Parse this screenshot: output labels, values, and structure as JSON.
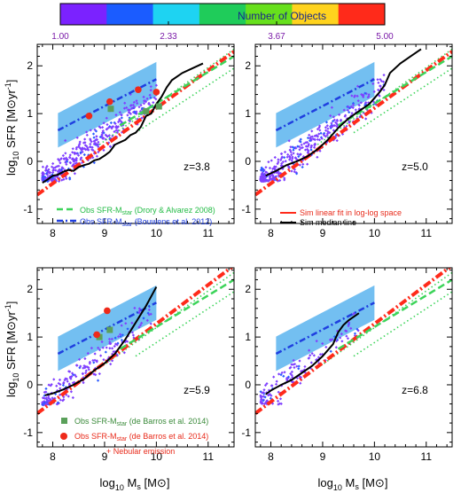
{
  "colorbar": {
    "title": "Number of Objects",
    "ticks": [
      "1.00",
      "2.33",
      "3.67",
      "5.00"
    ],
    "tick_values": [
      1.0,
      2.333,
      3.667,
      5.0
    ],
    "range": [
      1.0,
      5.0
    ],
    "colors": [
      "#7b22ff",
      "#1b5cff",
      "#1ed3f2",
      "#1fcc5a",
      "#67e01c",
      "#ffd31e",
      "#ff2a1a"
    ]
  },
  "axis_labels": {
    "ylabel_main": "log",
    "ylabel_sub": "10",
    "ylabel_rest": " SFR  [M",
    "ylabel_sun": "⊙",
    "ylabel_unit": "yr",
    "ylabel_sup": "-1",
    "ylabel_close": "]",
    "xlabel_main": "log",
    "xlabel_sub": "10",
    "xlabel_m": " M",
    "xlabel_msub": "s",
    "xlabel_unit": "  [M",
    "xlabel_sun": "⊙",
    "xlabel_close": "]"
  },
  "legends": {
    "p1": {
      "drory": "Obs SFR-M",
      "drory_sub": "star",
      "drory_ref": " (Drory & Alvarez 2008)",
      "bouwens": "Obs SFR-M",
      "bouwens_sub": "star",
      "bouwens_ref": " (Bouwens et al. 2012)"
    },
    "p2": {
      "linfit": "Sim linear fit in log-log space",
      "median": "Sim median line"
    },
    "p3": {
      "barros_sq": "Obs SFR-M",
      "barros_sq_sub": "star",
      "barros_sq_ref": " (de Barros et al. 2014)",
      "barros_ci": "Obs SFR-M",
      "barros_ci_sub": "star",
      "barros_ci_ref": " (de Barros et al. 2014)",
      "nebular": "+ Nebular emission"
    }
  },
  "chart_data": [
    {
      "type": "scatter",
      "panel": "top-left",
      "redshift_label": "z=3.8",
      "xlim": [
        7.7,
        11.5
      ],
      "ylim": [
        -1.3,
        2.45
      ],
      "xticks": [
        "8",
        "9",
        "10",
        "11"
      ],
      "yticks": [
        "-1",
        "0",
        "1",
        "2"
      ],
      "scatter_cloud": {
        "x_range": [
          7.8,
          10.0
        ],
        "y_center_at_x8": -0.3,
        "slope": 0.85,
        "count_shown": "dense"
      },
      "series": [
        {
          "name": "Sim median line",
          "x": [
            7.8,
            7.9,
            8.0,
            8.1,
            8.2,
            8.3,
            8.4,
            8.5,
            8.6,
            8.7,
            8.8,
            8.9,
            9.0,
            9.1,
            9.2,
            9.3,
            9.4,
            9.5,
            9.6,
            9.7,
            9.8,
            9.9,
            10.0,
            10.1,
            10.2,
            10.3,
            10.5,
            10.7,
            10.9
          ],
          "y": [
            -0.45,
            -0.38,
            -0.3,
            -0.28,
            -0.22,
            -0.18,
            -0.2,
            -0.12,
            -0.08,
            -0.05,
            0.02,
            0.05,
            0.12,
            0.2,
            0.35,
            0.4,
            0.45,
            0.55,
            0.6,
            0.72,
            0.95,
            1.0,
            1.2,
            1.35,
            1.55,
            1.7,
            1.85,
            1.95,
            2.05
          ]
        },
        {
          "name": "Sim linear fit in log-log space",
          "x": [
            7.7,
            11.5
          ],
          "y": [
            -0.7,
            2.3
          ]
        },
        {
          "name": "Obs SFR-Mstar (Drory & Alvarez 2008)",
          "x": [
            9.3,
            11.5
          ],
          "y": [
            0.75,
            2.2
          ]
        },
        {
          "name": "Obs SFR-Mstar (Bouwens et al. 2012)",
          "x": [
            8.1,
            10.0
          ],
          "y": [
            0.65,
            1.72
          ]
        }
      ],
      "obs_points_squares": [
        [
          9.12,
          1.1
        ],
        [
          9.8,
          1.05
        ],
        [
          10.05,
          1.15
        ]
      ],
      "obs_points_circles": [
        [
          8.7,
          0.95
        ],
        [
          9.1,
          1.25
        ],
        [
          9.65,
          1.5
        ],
        [
          10.0,
          1.45
        ]
      ]
    },
    {
      "type": "scatter",
      "panel": "top-right",
      "redshift_label": "z=5.0",
      "xlim": [
        7.7,
        11.5
      ],
      "ylim": [
        -1.3,
        2.45
      ],
      "xticks": [
        "8",
        "9",
        "10",
        "11"
      ],
      "yticks": [
        "-1",
        "0",
        "1",
        "2"
      ],
      "scatter_cloud": {
        "x_range": [
          7.8,
          10.2
        ],
        "y_center_at_x8": -0.3,
        "slope": 0.85,
        "count_shown": "dense"
      },
      "series": [
        {
          "name": "Sim median line",
          "x": [
            7.9,
            8.1,
            8.3,
            8.5,
            8.7,
            8.9,
            9.1,
            9.3,
            9.5,
            9.7,
            9.9,
            10.1,
            10.2,
            10.3,
            10.5,
            10.7,
            10.9
          ],
          "y": [
            -0.3,
            -0.2,
            -0.08,
            0.0,
            0.1,
            0.25,
            0.45,
            0.7,
            0.9,
            1.05,
            1.2,
            1.45,
            1.6,
            1.85,
            2.05,
            2.2,
            2.35
          ]
        },
        {
          "name": "Sim linear fit in log-log space",
          "x": [
            7.7,
            11.5
          ],
          "y": [
            -0.7,
            2.3
          ]
        }
      ]
    },
    {
      "type": "scatter",
      "panel": "bottom-left",
      "redshift_label": "z=5.9",
      "xlim": [
        7.7,
        11.5
      ],
      "ylim": [
        -1.3,
        2.45
      ],
      "xticks": [
        "8",
        "9",
        "10",
        "11"
      ],
      "yticks": [
        "-1",
        "0",
        "1",
        "2"
      ],
      "scatter_cloud": {
        "x_range": [
          7.8,
          9.9
        ],
        "y_center_at_x8": -0.25,
        "slope": 0.9,
        "count_shown": "medium"
      },
      "series": [
        {
          "name": "Sim median line",
          "x": [
            7.85,
            8.0,
            8.2,
            8.4,
            8.6,
            8.8,
            9.0,
            9.2,
            9.4,
            9.6,
            9.8,
            10.0
          ],
          "y": [
            -0.22,
            -0.18,
            -0.1,
            0.0,
            0.12,
            0.3,
            0.45,
            0.65,
            0.95,
            1.3,
            1.65,
            2.05
          ]
        },
        {
          "name": "Sim linear fit in log-log space",
          "x": [
            7.7,
            11.5
          ],
          "y": [
            -0.6,
            2.5
          ]
        }
      ],
      "obs_points_squares": [
        [
          8.9,
          1.0
        ],
        [
          9.1,
          1.15
        ]
      ],
      "obs_points_circles": [
        [
          8.85,
          1.05
        ],
        [
          9.05,
          1.55
        ]
      ]
    },
    {
      "type": "scatter",
      "panel": "bottom-right",
      "redshift_label": "z=6.8",
      "xlim": [
        7.7,
        11.5
      ],
      "ylim": [
        -1.3,
        2.45
      ],
      "xticks": [
        "8",
        "9",
        "10",
        "11"
      ],
      "yticks": [
        "-1",
        "0",
        "1",
        "2"
      ],
      "scatter_cloud": {
        "x_range": [
          7.8,
          9.7
        ],
        "y_center_at_x8": -0.2,
        "slope": 0.9,
        "count_shown": "sparse"
      },
      "series": [
        {
          "name": "Sim median line",
          "x": [
            7.9,
            8.0,
            8.2,
            8.4,
            8.6,
            8.8,
            9.0,
            9.2,
            9.3,
            9.4,
            9.5,
            9.7
          ],
          "y": [
            -0.2,
            -0.12,
            0.0,
            0.1,
            0.25,
            0.4,
            0.6,
            0.85,
            1.1,
            1.25,
            1.35,
            1.5
          ]
        },
        {
          "name": "Sim linear fit in log-log space",
          "x": [
            7.7,
            11.5
          ],
          "y": [
            -0.6,
            2.5
          ]
        }
      ]
    }
  ],
  "colors": {
    "blue_band": "#5ab4ee",
    "blue_line": "#1f3fe0",
    "green_dash": "#3dd45a",
    "green_dot": "#3dd45a",
    "red_fit": "#ff2a1a",
    "median": "#000000",
    "obs_square": "#5aa05a",
    "obs_circle": "#ee2a1a",
    "scatter_main": "#8040ff",
    "scatter_alt": "#2a5aff",
    "nebular_text": "#e82a1a"
  }
}
